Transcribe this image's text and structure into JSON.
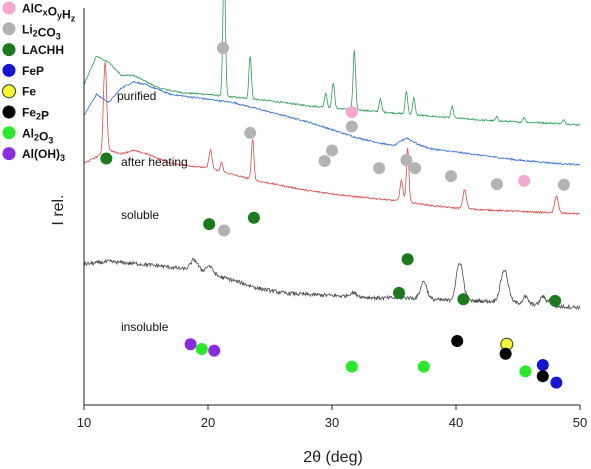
{
  "chart_data": {
    "type": "line",
    "xlabel": "2θ (deg)",
    "ylabel": "I rel.",
    "xlim": [
      10,
      50
    ],
    "xticks": [
      "10",
      "20",
      "30",
      "40",
      "50"
    ],
    "grid": false,
    "legend_position": "top-left",
    "legend": [
      {
        "label": "AlCxOyHz",
        "base": "AlC",
        "sub1": "x",
        "mid1": "O",
        "sub2": "y",
        "mid2": "H",
        "sub3": "z",
        "color": "#f4a8cf"
      },
      {
        "label": "Li2CO3",
        "base": "Li",
        "sub1": "2",
        "mid1": "CO",
        "sub2": "3",
        "mid2": "",
        "sub3": "",
        "color": "#b3b3b3"
      },
      {
        "label": "LACHH",
        "base": "LACHH",
        "sub1": "",
        "mid1": "",
        "sub2": "",
        "mid2": "",
        "sub3": "",
        "color": "#1b7a1b"
      },
      {
        "label": "FeP",
        "base": "FeP",
        "sub1": "",
        "mid1": "",
        "sub2": "",
        "mid2": "",
        "sub3": "",
        "color": "#1515d6"
      },
      {
        "label": "Fe",
        "base": "Fe",
        "sub1": "",
        "mid1": "",
        "sub2": "",
        "mid2": "",
        "sub3": "",
        "color": "#f7f732"
      },
      {
        "label": "Fe2P",
        "base": "Fe",
        "sub1": "2",
        "mid1": "P",
        "sub2": "",
        "mid2": "",
        "sub3": "",
        "color": "#000000"
      },
      {
        "label": "Al2O3",
        "base": "Al",
        "sub1": "2",
        "mid1": "O",
        "sub2": "3",
        "mid2": "",
        "sub3": "",
        "color": "#2ae82a"
      },
      {
        "label": "Al(OH)3",
        "base": "Al(OH)",
        "sub1": "3",
        "mid1": "",
        "sub2": "",
        "mid2": "",
        "sub3": "",
        "color": "#8a2be2"
      }
    ],
    "series": [
      {
        "name": "purified",
        "color": "#2e9e5a",
        "offset": 4.1,
        "background": [
          [
            10,
            -0.3
          ],
          [
            11,
            0.6
          ],
          [
            12,
            0.4
          ],
          [
            13,
            0.0
          ],
          [
            14,
            0.0
          ],
          [
            16,
            -0.4
          ],
          [
            18,
            -0.55
          ],
          [
            20,
            -0.6
          ],
          [
            22,
            -0.68
          ],
          [
            25,
            -0.8
          ],
          [
            28,
            -0.95
          ],
          [
            30,
            -1.02
          ],
          [
            32,
            -1.08
          ],
          [
            35,
            -1.18
          ],
          [
            38,
            -1.28
          ],
          [
            40,
            -1.34
          ],
          [
            42,
            -1.4
          ],
          [
            45,
            -1.46
          ],
          [
            48,
            -1.5
          ],
          [
            50,
            -1.55
          ]
        ],
        "peaks": [
          [
            21.3,
            4.1,
            0.1
          ],
          [
            23.4,
            1.35,
            0.1
          ],
          [
            29.5,
            0.45,
            0.1
          ],
          [
            30.1,
            0.8,
            0.1
          ],
          [
            31.8,
            1.85,
            0.1
          ],
          [
            33.9,
            0.4,
            0.1
          ],
          [
            36.0,
            0.72,
            0.1
          ],
          [
            36.6,
            0.52,
            0.1
          ],
          [
            39.7,
            0.35,
            0.1
          ],
          [
            43.3,
            0.12,
            0.1
          ],
          [
            45.5,
            0.15,
            0.1
          ],
          [
            48.7,
            0.12,
            0.1
          ]
        ]
      },
      {
        "name": "after heating",
        "color": "#2f6fd8",
        "offset": 3.35,
        "background": [
          [
            10,
            -0.5
          ],
          [
            11,
            0.15
          ],
          [
            12,
            -0.1
          ],
          [
            13,
            0.35
          ],
          [
            14,
            0.55
          ],
          [
            15,
            0.45
          ],
          [
            17,
            0.15
          ],
          [
            19,
            0.05
          ],
          [
            20,
            0.0
          ],
          [
            22,
            -0.1
          ],
          [
            24,
            -0.3
          ],
          [
            26,
            -0.5
          ],
          [
            28,
            -0.7
          ],
          [
            30,
            -0.95
          ],
          [
            32,
            -1.2
          ],
          [
            34,
            -1.38
          ],
          [
            35,
            -1.45
          ],
          [
            36,
            -1.2
          ],
          [
            37,
            -1.42
          ],
          [
            38,
            -1.55
          ],
          [
            40,
            -1.65
          ],
          [
            42,
            -1.75
          ],
          [
            45,
            -1.9
          ],
          [
            48,
            -2.0
          ],
          [
            50,
            -2.05
          ]
        ],
        "peaks": []
      },
      {
        "name": "soluble",
        "color": "#e04b4b",
        "offset": 1.35,
        "background": [
          [
            10,
            0.0
          ],
          [
            11,
            0.2
          ],
          [
            12,
            0.4
          ],
          [
            13,
            0.3
          ],
          [
            14,
            0.4
          ],
          [
            15,
            0.3
          ],
          [
            17,
            0.0
          ],
          [
            19,
            -0.1
          ],
          [
            20,
            -0.15
          ],
          [
            22,
            -0.35
          ],
          [
            24,
            -0.55
          ],
          [
            26,
            -0.7
          ],
          [
            28,
            -0.85
          ],
          [
            30,
            -0.95
          ],
          [
            32,
            -1.05
          ],
          [
            34,
            -1.12
          ],
          [
            36,
            -1.2
          ],
          [
            38,
            -1.32
          ],
          [
            40,
            -1.4
          ],
          [
            42,
            -1.45
          ],
          [
            45,
            -1.5
          ],
          [
            48,
            -1.55
          ],
          [
            50,
            -1.58
          ]
        ],
        "peaks": [
          [
            11.7,
            2.85,
            0.13
          ],
          [
            20.2,
            0.6,
            0.12
          ],
          [
            21.1,
            0.3,
            0.1
          ],
          [
            23.6,
            1.28,
            0.1
          ],
          [
            35.6,
            0.65,
            0.12
          ],
          [
            36.1,
            1.7,
            0.1
          ],
          [
            40.7,
            0.6,
            0.14
          ],
          [
            48.1,
            0.55,
            0.14
          ]
        ]
      },
      {
        "name": "insoluble",
        "color": "#4a4a4a",
        "offset": 0.0,
        "background": [
          [
            10,
            -1.8
          ],
          [
            12,
            -1.72
          ],
          [
            14,
            -1.78
          ],
          [
            16,
            -1.85
          ],
          [
            18,
            -1.95
          ],
          [
            20,
            -2.1
          ],
          [
            22,
            -2.3
          ],
          [
            24,
            -2.55
          ],
          [
            26,
            -2.7
          ],
          [
            28,
            -2.75
          ],
          [
            30,
            -2.78
          ],
          [
            32,
            -2.82
          ],
          [
            34,
            -2.86
          ],
          [
            36,
            -2.85
          ],
          [
            38,
            -2.9
          ],
          [
            40,
            -2.95
          ],
          [
            42,
            -2.95
          ],
          [
            44,
            -2.98
          ],
          [
            46,
            -3.05
          ],
          [
            48,
            -3.12
          ],
          [
            50,
            -3.15
          ]
        ],
        "peaks": [
          [
            18.9,
            0.35,
            0.3
          ],
          [
            20.1,
            0.25,
            0.3
          ],
          [
            31.7,
            0.12,
            0.3
          ],
          [
            37.4,
            0.55,
            0.25
          ],
          [
            40.3,
            1.2,
            0.28
          ],
          [
            43.9,
            1.0,
            0.3
          ],
          [
            45.6,
            0.22,
            0.2
          ],
          [
            47.0,
            0.28,
            0.2
          ],
          [
            47.6,
            0.2,
            0.2
          ]
        ]
      }
    ],
    "markers": [
      {
        "phase": "Li2CO3",
        "x": 21.2,
        "y": 4.95
      },
      {
        "phase": "Li2CO3",
        "x": 23.4,
        "y": 2.3
      },
      {
        "phase": "AlCxOyHz",
        "x": 31.6,
        "y": 2.95
      },
      {
        "phase": "Li2CO3",
        "x": 31.6,
        "y": 2.5
      },
      {
        "phase": "Li2CO3",
        "x": 30.0,
        "y": 1.75
      },
      {
        "phase": "Li2CO3",
        "x": 29.4,
        "y": 1.42
      },
      {
        "phase": "Li2CO3",
        "x": 33.8,
        "y": 1.2
      },
      {
        "phase": "Li2CO3",
        "x": 36.0,
        "y": 1.45
      },
      {
        "phase": "Li2CO3",
        "x": 36.7,
        "y": 1.2
      },
      {
        "phase": "Li2CO3",
        "x": 39.6,
        "y": 0.95
      },
      {
        "phase": "Li2CO3",
        "x": 43.3,
        "y": 0.7
      },
      {
        "phase": "AlCxOyHz",
        "x": 45.5,
        "y": 0.8
      },
      {
        "phase": "Li2CO3",
        "x": 48.7,
        "y": 0.68
      },
      {
        "phase": "LACHH",
        "x": 11.8,
        "y": 1.5
      },
      {
        "phase": "LACHH",
        "x": 20.1,
        "y": -0.55
      },
      {
        "phase": "Li2CO3",
        "x": 21.3,
        "y": -0.75
      },
      {
        "phase": "LACHH",
        "x": 23.7,
        "y": -0.35
      },
      {
        "phase": "LACHH",
        "x": 36.1,
        "y": -1.65
      },
      {
        "phase": "LACHH",
        "x": 35.4,
        "y": -2.7
      },
      {
        "phase": "LACHH",
        "x": 40.6,
        "y": -2.9
      },
      {
        "phase": "LACHH",
        "x": 48.0,
        "y": -2.95
      },
      {
        "phase": "Al(OH)3",
        "x": 18.6,
        "y": -4.3
      },
      {
        "phase": "Al2O3",
        "x": 19.5,
        "y": -4.45
      },
      {
        "phase": "Al(OH)3",
        "x": 20.5,
        "y": -4.5
      },
      {
        "phase": "Al2O3",
        "x": 31.6,
        "y": -5.0
      },
      {
        "phase": "Al2O3",
        "x": 37.4,
        "y": -5.0
      },
      {
        "phase": "Fe2P",
        "x": 40.1,
        "y": -4.2
      },
      {
        "phase": "Fe",
        "x": 44.1,
        "y": -4.3
      },
      {
        "phase": "Fe2P",
        "x": 44.0,
        "y": -4.6
      },
      {
        "phase": "Al2O3",
        "x": 45.6,
        "y": -5.15
      },
      {
        "phase": "FeP",
        "x": 47.0,
        "y": -4.95
      },
      {
        "phase": "Fe2P",
        "x": 47.0,
        "y": -5.3
      },
      {
        "phase": "FeP",
        "x": 48.1,
        "y": -5.5
      }
    ],
    "ylim": [
      -6.2,
      6.2
    ]
  }
}
